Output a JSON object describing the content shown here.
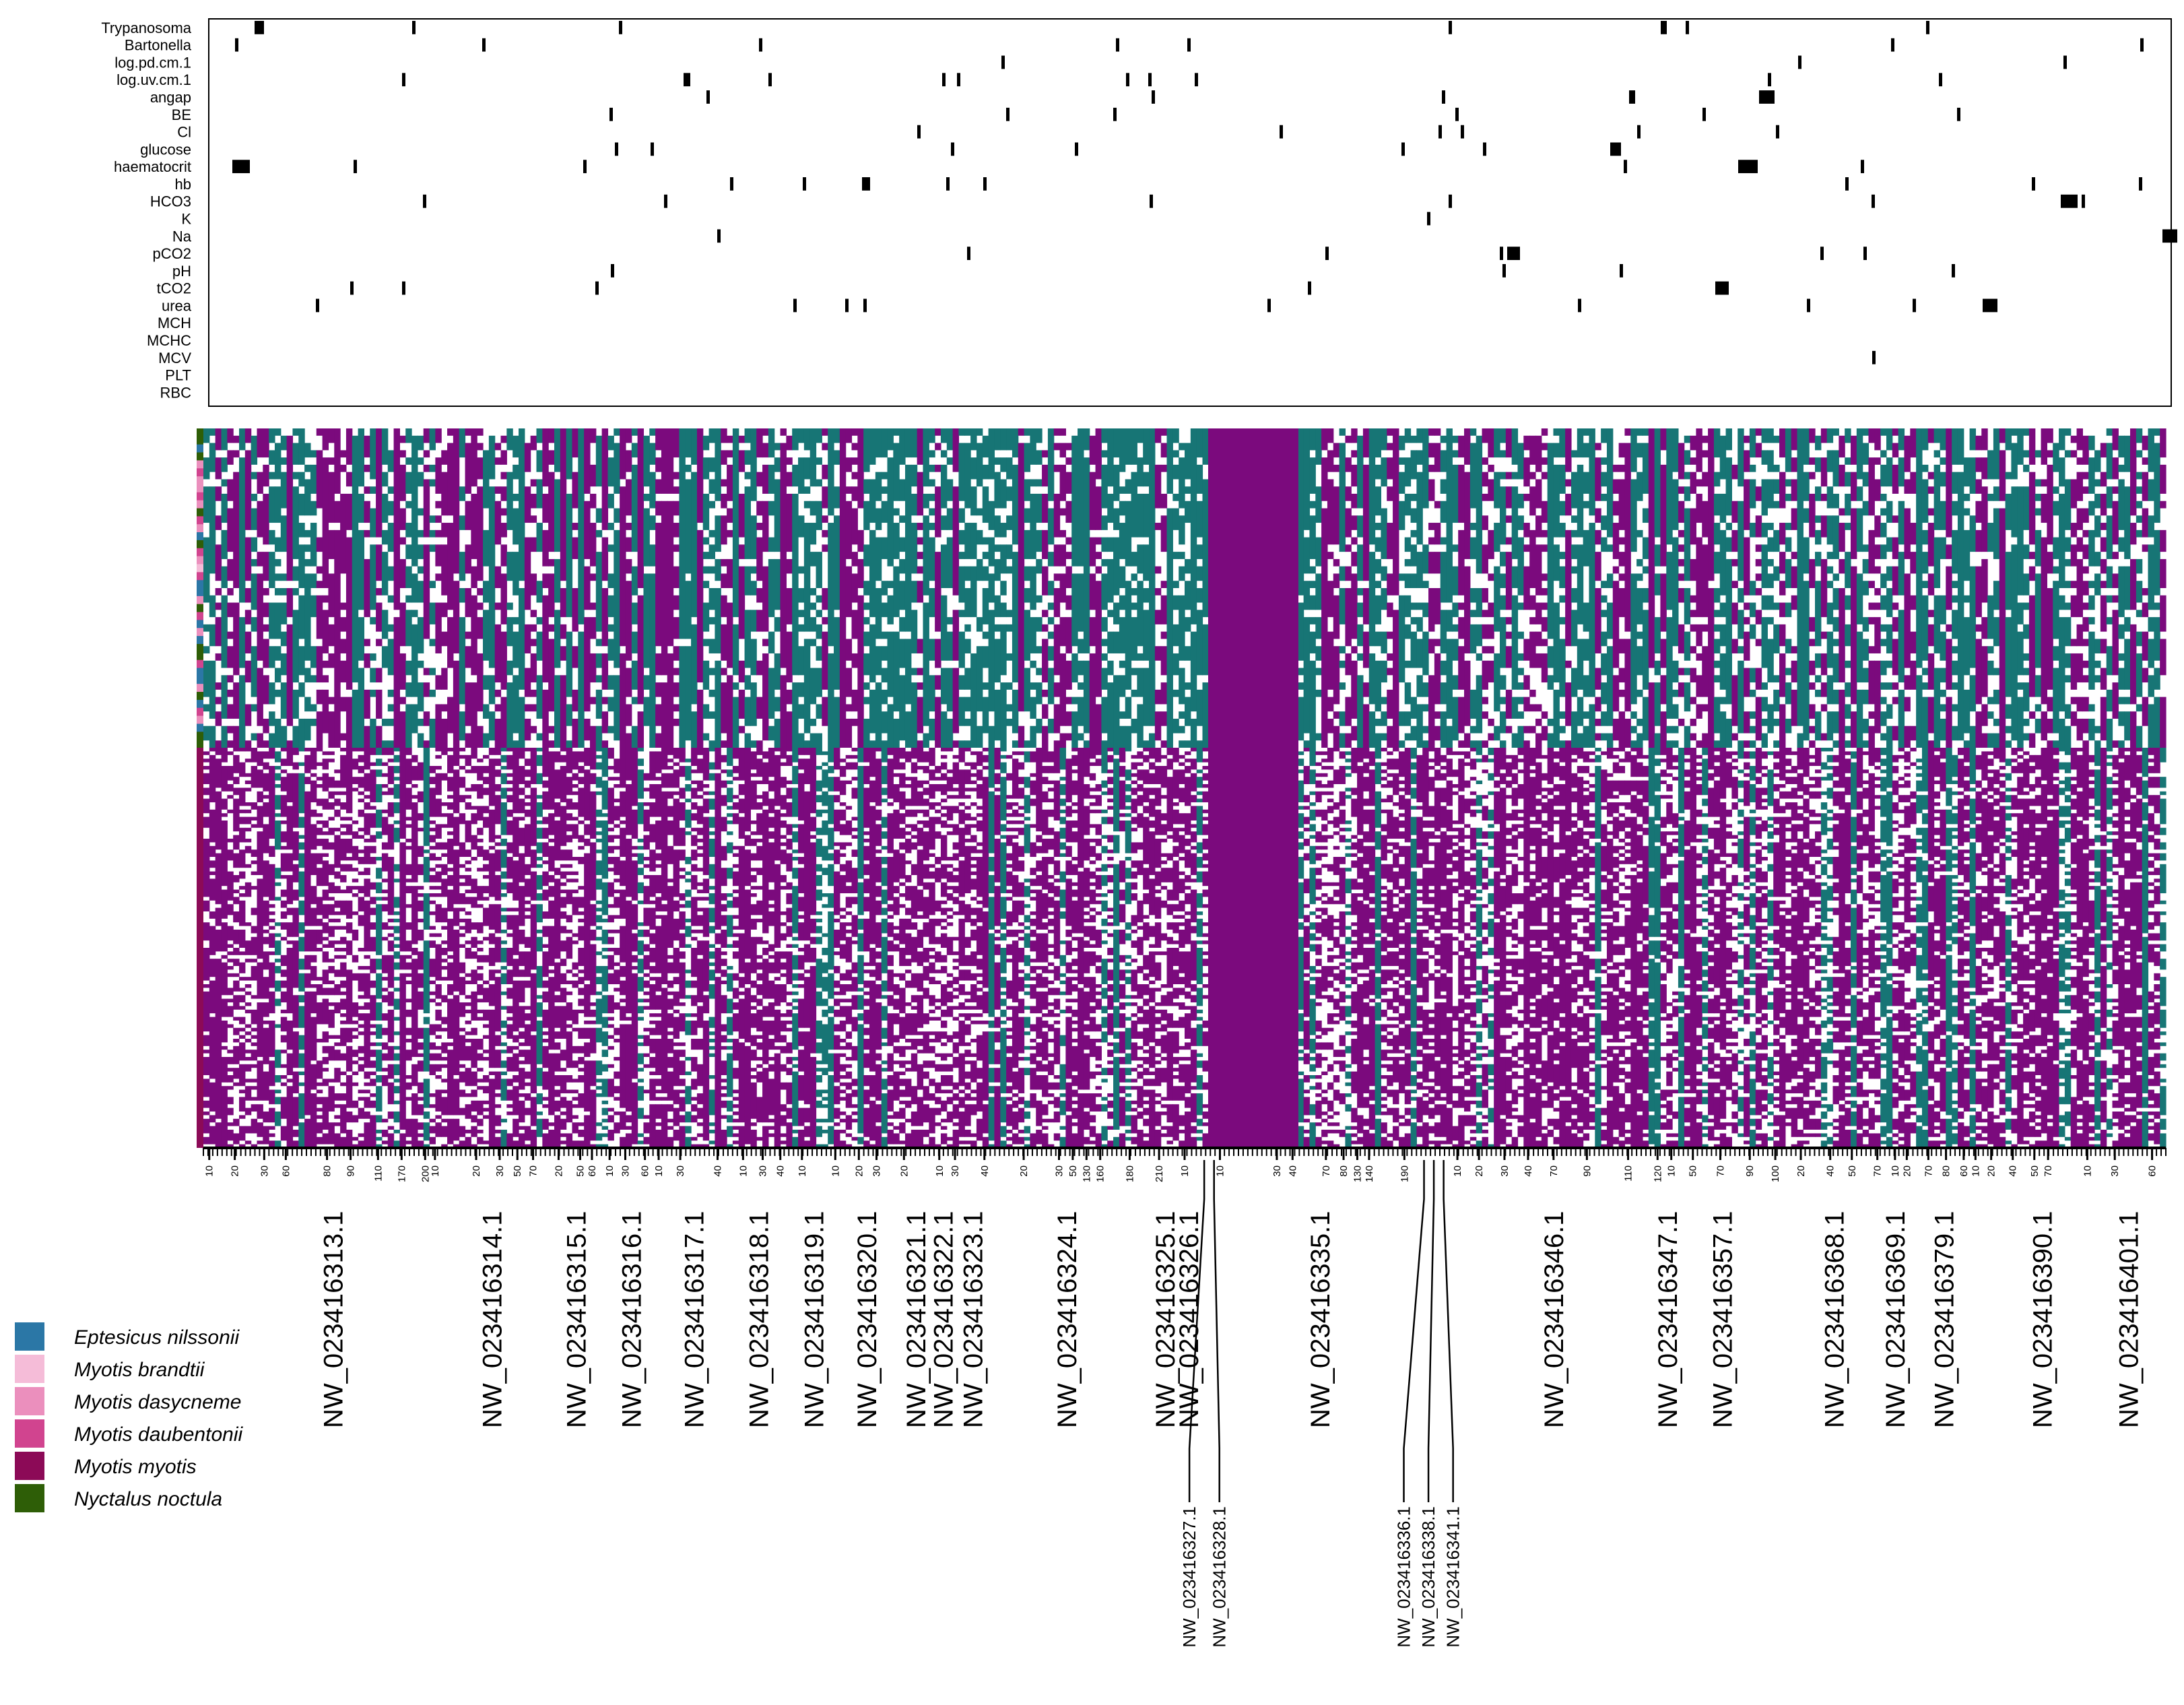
{
  "chart_data": {
    "type": "heatmap",
    "colors": {
      "trait_hit": "#000000",
      "genotype_a": "#7b0a7d",
      "genotype_b": "#177575",
      "missing": "#ffffff"
    },
    "traits": [
      "Trypanosoma",
      "Bartonella",
      "log.pd.cm.1",
      "log.uv.cm.1",
      "angap",
      "BE",
      "Cl",
      "glucose",
      "haematocrit",
      "hb",
      "HCO3",
      "K",
      "Na",
      "pCO2",
      "pH",
      "tCO2",
      "urea",
      "MCH",
      "MCHC",
      "MCV",
      "PLT",
      "RBC"
    ],
    "species_legend": [
      {
        "name": "Eptesicus nilssonii",
        "color": "#2b77a6"
      },
      {
        "name": "Myotis brandtii",
        "color": "#f5bcd8"
      },
      {
        "name": "Myotis dasycneme",
        "color": "#eb8fbd"
      },
      {
        "name": "Myotis daubentonii",
        "color": "#d1448f"
      },
      {
        "name": "Myotis myotis",
        "color": "#8c0a57"
      },
      {
        "name": "Nyctalus noctula",
        "color": "#2e5e07"
      }
    ],
    "scaffolds_main": [
      {
        "label": "NW_023416313.1",
        "pos": 0.066
      },
      {
        "label": "NW_023416314.1",
        "pos": 0.147
      },
      {
        "label": "NW_023416315.1",
        "pos": 0.19
      },
      {
        "label": "NW_023416316.1",
        "pos": 0.218
      },
      {
        "label": "NW_023416317.1",
        "pos": 0.25
      },
      {
        "label": "NW_023416318.1",
        "pos": 0.283
      },
      {
        "label": "NW_023416319.1",
        "pos": 0.311
      },
      {
        "label": "NW_023416320.1",
        "pos": 0.338
      },
      {
        "label": "NW_023416321.1",
        "pos": 0.363
      },
      {
        "label": "NW_023416322.1",
        "pos": 0.377
      },
      {
        "label": "NW_023416323.1",
        "pos": 0.392
      },
      {
        "label": "NW_023416324.1",
        "pos": 0.44
      },
      {
        "label": "NW_023416325.1",
        "pos": 0.49
      },
      {
        "label": "NW_023416326.1",
        "pos": 0.502
      },
      {
        "label": "NW_023416335.1",
        "pos": 0.569
      },
      {
        "label": "NW_023416346.1",
        "pos": 0.688
      },
      {
        "label": "NW_023416347.1",
        "pos": 0.746
      },
      {
        "label": "NW_023416357.1",
        "pos": 0.774
      },
      {
        "label": "NW_023416368.1",
        "pos": 0.831
      },
      {
        "label": "NW_023416369.1",
        "pos": 0.862
      },
      {
        "label": "NW_023416379.1",
        "pos": 0.887
      },
      {
        "label": "NW_023416390.1",
        "pos": 0.937
      },
      {
        "label": "NW_023416401.1",
        "pos": 0.981
      }
    ],
    "scaffolds_small": [
      {
        "label": "NW_023416327.1",
        "pos": 0.51
      },
      {
        "label": "NW_023416328.1",
        "pos": 0.515
      },
      {
        "label": "NW_023416336.1",
        "pos": 0.622
      },
      {
        "label": "NW_023416338.1",
        "pos": 0.627
      },
      {
        "label": "NW_023416341.1",
        "pos": 0.632
      }
    ],
    "ticks": [
      {
        "v": "10",
        "p": 0.003
      },
      {
        "v": "20",
        "p": 0.016
      },
      {
        "v": "30",
        "p": 0.031
      },
      {
        "v": "60",
        "p": 0.042
      },
      {
        "v": "80",
        "p": 0.063
      },
      {
        "v": "90",
        "p": 0.075
      },
      {
        "v": "110",
        "p": 0.089
      },
      {
        "v": "170",
        "p": 0.101
      },
      {
        "v": "200",
        "p": 0.113
      },
      {
        "v": "10",
        "p": 0.118
      },
      {
        "v": "20",
        "p": 0.139
      },
      {
        "v": "30",
        "p": 0.151
      },
      {
        "v": "50",
        "p": 0.16
      },
      {
        "v": "70",
        "p": 0.168
      },
      {
        "v": "20",
        "p": 0.181
      },
      {
        "v": "50",
        "p": 0.192
      },
      {
        "v": "60",
        "p": 0.198
      },
      {
        "v": "10",
        "p": 0.207
      },
      {
        "v": "30",
        "p": 0.215
      },
      {
        "v": "60",
        "p": 0.225
      },
      {
        "v": "10",
        "p": 0.232
      },
      {
        "v": "30",
        "p": 0.243
      },
      {
        "v": "40",
        "p": 0.262
      },
      {
        "v": "10",
        "p": 0.275
      },
      {
        "v": "30",
        "p": 0.285
      },
      {
        "v": "40",
        "p": 0.294
      },
      {
        "v": "10",
        "p": 0.305
      },
      {
        "v": "10",
        "p": 0.322
      },
      {
        "v": "20",
        "p": 0.334
      },
      {
        "v": "30",
        "p": 0.343
      },
      {
        "v": "20",
        "p": 0.357
      },
      {
        "v": "10",
        "p": 0.375
      },
      {
        "v": "30",
        "p": 0.383
      },
      {
        "v": "40",
        "p": 0.398
      },
      {
        "v": "20",
        "p": 0.418
      },
      {
        "v": "30",
        "p": 0.436
      },
      {
        "v": "50",
        "p": 0.443
      },
      {
        "v": "130",
        "p": 0.45
      },
      {
        "v": "160",
        "p": 0.457
      },
      {
        "v": "180",
        "p": 0.472
      },
      {
        "v": "210",
        "p": 0.487
      },
      {
        "v": "10",
        "p": 0.5
      },
      {
        "v": "10",
        "p": 0.518
      },
      {
        "v": "30",
        "p": 0.547
      },
      {
        "v": "40",
        "p": 0.555
      },
      {
        "v": "70",
        "p": 0.572
      },
      {
        "v": "80",
        "p": 0.581
      },
      {
        "v": "130",
        "p": 0.588
      },
      {
        "v": "140",
        "p": 0.594
      },
      {
        "v": "190",
        "p": 0.612
      },
      {
        "v": "10",
        "p": 0.639
      },
      {
        "v": "20",
        "p": 0.65
      },
      {
        "v": "30",
        "p": 0.663
      },
      {
        "v": "40",
        "p": 0.675
      },
      {
        "v": "70",
        "p": 0.688
      },
      {
        "v": "90",
        "p": 0.705
      },
      {
        "v": "110",
        "p": 0.726
      },
      {
        "v": "120",
        "p": 0.741
      },
      {
        "v": "10",
        "p": 0.748
      },
      {
        "v": "50",
        "p": 0.759
      },
      {
        "v": "70",
        "p": 0.773
      },
      {
        "v": "90",
        "p": 0.788
      },
      {
        "v": "100",
        "p": 0.801
      },
      {
        "v": "20",
        "p": 0.814
      },
      {
        "v": "40",
        "p": 0.829
      },
      {
        "v": "50",
        "p": 0.84
      },
      {
        "v": "70",
        "p": 0.853
      },
      {
        "v": "10",
        "p": 0.862
      },
      {
        "v": "20",
        "p": 0.868
      },
      {
        "v": "70",
        "p": 0.879
      },
      {
        "v": "80",
        "p": 0.888
      },
      {
        "v": "60",
        "p": 0.897
      },
      {
        "v": "10",
        "p": 0.903
      },
      {
        "v": "20",
        "p": 0.911
      },
      {
        "v": "40",
        "p": 0.922
      },
      {
        "v": "50",
        "p": 0.933
      },
      {
        "v": "70",
        "p": 0.94
      },
      {
        "v": "10",
        "p": 0.96
      },
      {
        "v": "30",
        "p": 0.974
      },
      {
        "v": "60",
        "p": 0.993
      }
    ]
  }
}
